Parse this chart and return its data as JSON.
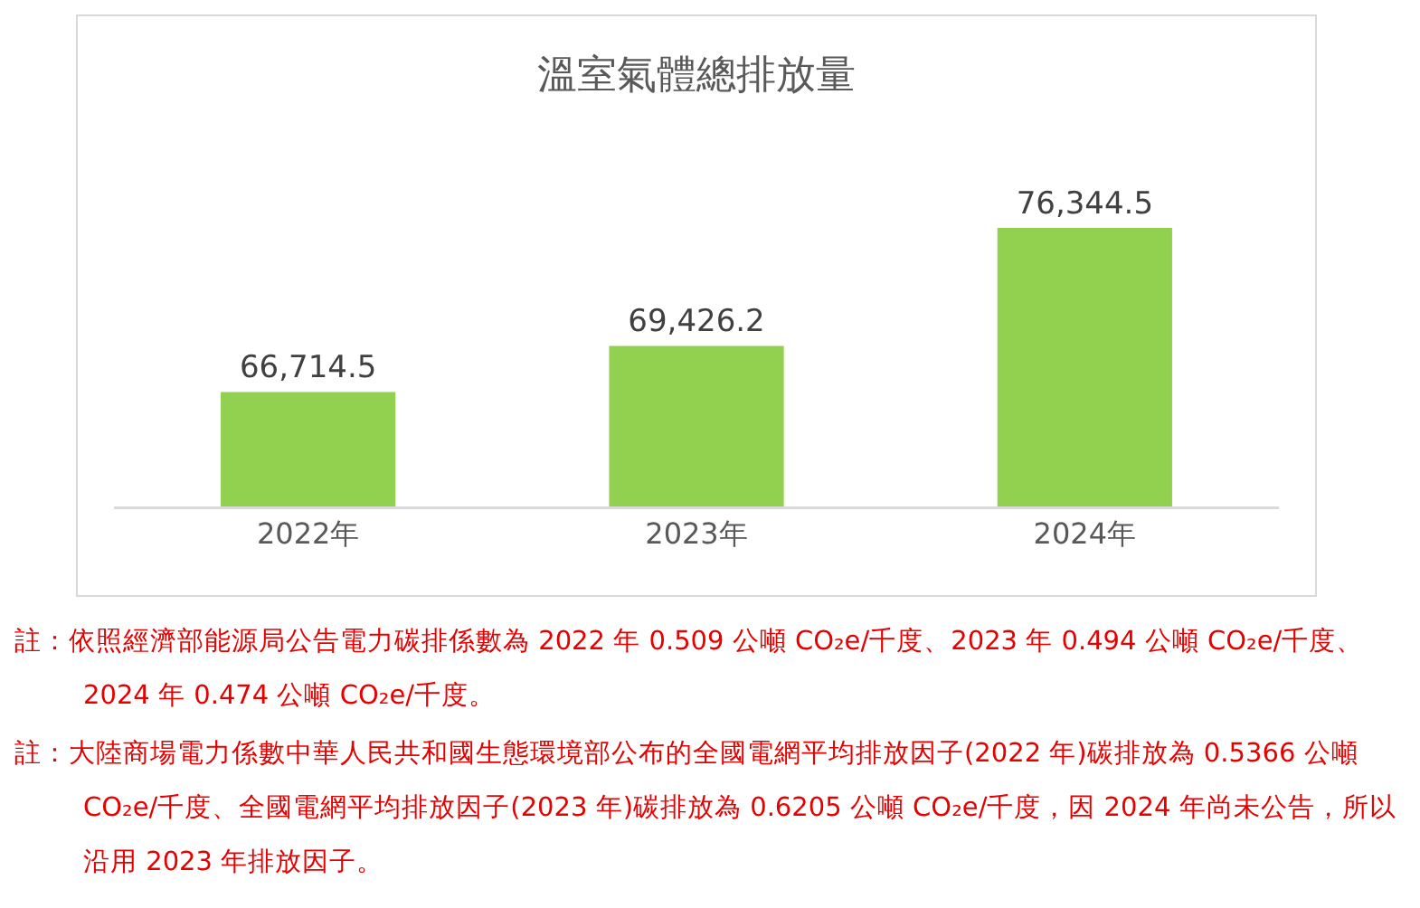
{
  "chart_data": {
    "type": "bar",
    "title": "溫室氣體總排放量",
    "categories": [
      "2022年",
      "2023年",
      "2024年"
    ],
    "values": [
      66714.5,
      69426.2,
      76344.5
    ],
    "value_labels": [
      "66,714.5",
      "69,426.2",
      "76,344.5"
    ],
    "color": "#92d050",
    "ylim": [
      60000,
      76344.5
    ],
    "tick_labels": "x",
    "grid": false,
    "annotations": [
      "註：依照經濟部能源局公告電力碳排係數為 2022 年 0.509 公噸 CO₂e/千度、2023 年 0.494 公噸 CO₂e/千度、2024 年 0.474 公噸 CO₂e/千度。",
      "註：大陸商場電力係數中華人民共和國生態環境部公布的全國電網平均排放因子(2022 年)碳排放為 0.5366 公噸 CO₂e/千度、全國電網平均排放因子(2023 年)碳排放為 0.6205 公噸 CO₂e/千度，因 2024 年尚未公告，所以沿用 2023 年排放因子。"
    ]
  }
}
